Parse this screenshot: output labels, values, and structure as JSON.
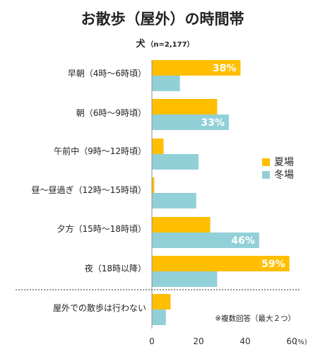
{
  "chart_data": {
    "type": "bar",
    "orientation": "horizontal",
    "title": "お散歩（屋外）の時間帯",
    "subtitle": "犬",
    "sample_size": "（n=2,177）",
    "categories": [
      "早朝（4時～6時頃）",
      "朝（6時～9時頃）",
      "午前中（9時～12時頃）",
      "昼～昼過ぎ（12時～15時頃）",
      "夕方（15時～18時頃）",
      "夜（18時以降）",
      "屋外での散歩は行わない"
    ],
    "series": [
      {
        "name": "夏場",
        "color": "#FFBE00",
        "values": [
          38,
          28,
          5,
          1,
          25,
          59,
          8
        ]
      },
      {
        "name": "冬場",
        "color": "#92D0D8",
        "values": [
          12,
          33,
          20,
          19,
          46,
          28,
          6
        ]
      }
    ],
    "data_labels": [
      {
        "series": 0,
        "index": 0,
        "text": "38%"
      },
      {
        "series": 1,
        "index": 1,
        "text": "33%"
      },
      {
        "series": 1,
        "index": 4,
        "text": "46%"
      },
      {
        "series": 0,
        "index": 5,
        "text": "59%"
      }
    ],
    "x_ticks": [
      "0",
      "20",
      "40",
      "60"
    ],
    "x_unit": "(%)",
    "xlim": [
      0,
      60
    ],
    "legend_position": "right",
    "note": "※複数回答（最大２つ）",
    "separator_before_last": true
  }
}
